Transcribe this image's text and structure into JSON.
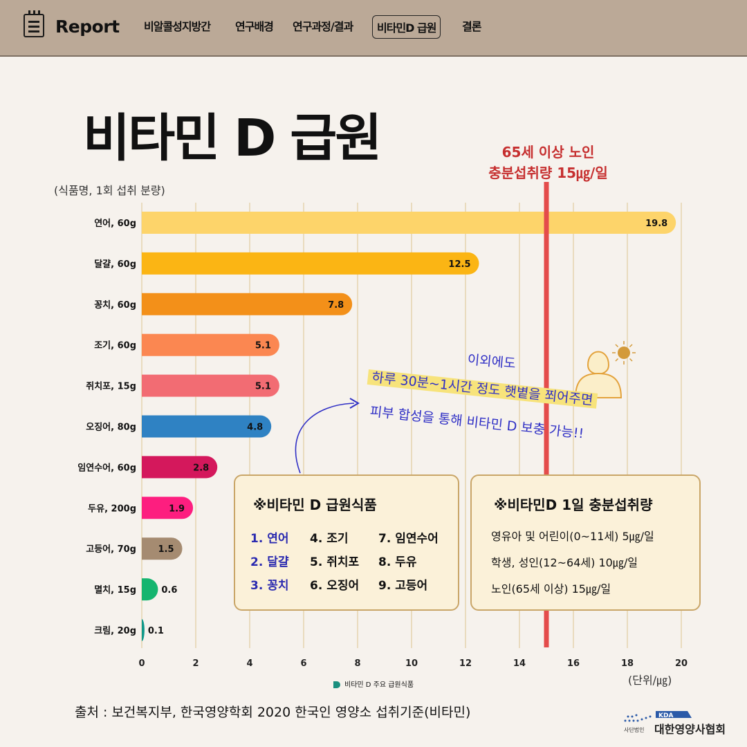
{
  "header": {
    "brand": "Report",
    "nav": [
      "비알콜성지방간",
      "연구배경",
      "연구과정/결과",
      "비타민D 급원",
      "결론"
    ],
    "active_index": 3
  },
  "page": {
    "title": "비타민 D 급원"
  },
  "chart_data": {
    "type": "bar",
    "orientation": "horizontal",
    "y_caption": "(식품명, 1회 섭취 분량)",
    "categories": [
      "연어, 60g",
      "달걀, 60g",
      "꽁치, 60g",
      "조기, 60g",
      "쥐치포, 15g",
      "오징어, 80g",
      "임연수어, 60g",
      "두유, 200g",
      "고등어, 70g",
      "멸치, 15g",
      "크림, 20g"
    ],
    "values": [
      19.8,
      12.5,
      7.8,
      5.1,
      5.1,
      4.8,
      2.8,
      1.9,
      1.5,
      0.6,
      0.1
    ],
    "value_labels": [
      "19.8",
      "12.5",
      "7.8",
      "5.1",
      "5.1",
      "4.8",
      "2.8",
      "1.9",
      "1.5",
      "0.6",
      "0.1"
    ],
    "colors": [
      "#fdd46a",
      "#fbb514",
      "#f39019",
      "#fb8751",
      "#f26c73",
      "#2f82c3",
      "#d4185c",
      "#fd1e7f",
      "#a58b71",
      "#15b56f",
      "#11998a"
    ],
    "xlim": [
      0,
      20
    ],
    "xticks": [
      "0",
      "2",
      "4",
      "6",
      "8",
      "10",
      "12",
      "14",
      "16",
      "18",
      "20"
    ],
    "grid": true,
    "legend_label": "비타민 D 주요 급원식품",
    "legend_position": "bottom",
    "unit_label": "(단위/㎍)",
    "reference_line": {
      "value": 15,
      "color": "#e44c4b",
      "label_lines": [
        "65세 이상 노인",
        "충분섭취량 15㎍/일"
      ]
    }
  },
  "annotation": {
    "line1": "이외에도",
    "line2": "하루 30분~1시간 정도 햇볕을 쬐어주면",
    "line3": "피부 합성을 통해 비타민 D 보충 가능!!",
    "icon": "person-sun-icon"
  },
  "food_box": {
    "title": "※비타민 D 급원식품",
    "items": [
      "1. 연어",
      "2. 달걀",
      "3. 꽁치",
      "4. 조기",
      "5. 쥐치포",
      "6. 오징어",
      "7. 임연수어",
      "8. 두유",
      "9. 고등어"
    ]
  },
  "intake_box": {
    "title": "※비타민D 1일 충분섭취량",
    "lines": [
      "영유아 및 어린이(0~11세) 5㎍/일",
      "학생, 성인(12~64세) 10㎍/일",
      "노인(65세 이상) 15㎍/일"
    ]
  },
  "footer": {
    "source": "출처 : 보건복지부, 한국영양학회 2020 한국인 영양소 섭취기준(비타민)",
    "logo_badge": "KDA",
    "logo_small": "사단법인",
    "logo_name": "대한영양사협회"
  },
  "colors": {
    "topbar": "#bba997",
    "background": "#f6f2ed",
    "accent_red": "#e44c4b",
    "box_fill": "#fbf1d9"
  }
}
